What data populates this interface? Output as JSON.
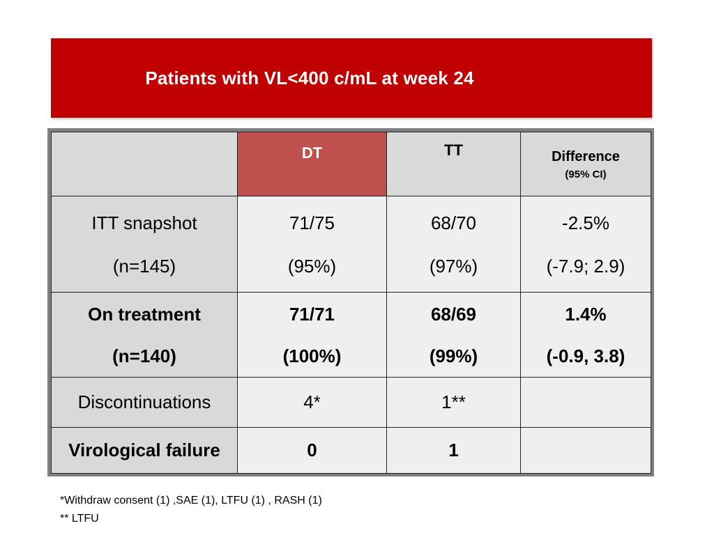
{
  "title": "Patients with VL<400 c/mL at week 24",
  "table": {
    "headers": {
      "dt": "DT",
      "tt": "TT",
      "difference": "Difference",
      "difference_sub": "(95% CI)"
    },
    "rows": [
      {
        "label": "ITT snapshot",
        "label_sub": "(n=145)",
        "dt": "71/75",
        "dt_sub": "(95%)",
        "tt": "68/70",
        "tt_sub": "(97%)",
        "diff": "-2.5%",
        "diff_sub": "(-7.9; 2.9)"
      },
      {
        "label": "On treatment",
        "label_sub": "(n=140)",
        "dt": "71/71",
        "dt_sub": "(100%)",
        "tt": "68/69",
        "tt_sub": "(99%)",
        "diff": "1.4%",
        "diff_sub": "(-0.9, 3.8)"
      },
      {
        "label": "Discontinuations",
        "dt": "4*",
        "tt": "1**",
        "diff": ""
      },
      {
        "label": "Virological failure",
        "dt": "0",
        "tt": "1",
        "diff": ""
      }
    ]
  },
  "footnotes": [
    "*Withdraw consent  (1) ,SAE (1), LTFU (1) , RASH (1)",
    "** LTFU"
  ],
  "colors": {
    "banner": "#c00000",
    "dt_header": "#c0504d",
    "header_gray": "#d9d9d9",
    "cell_bg": "#efefef"
  }
}
